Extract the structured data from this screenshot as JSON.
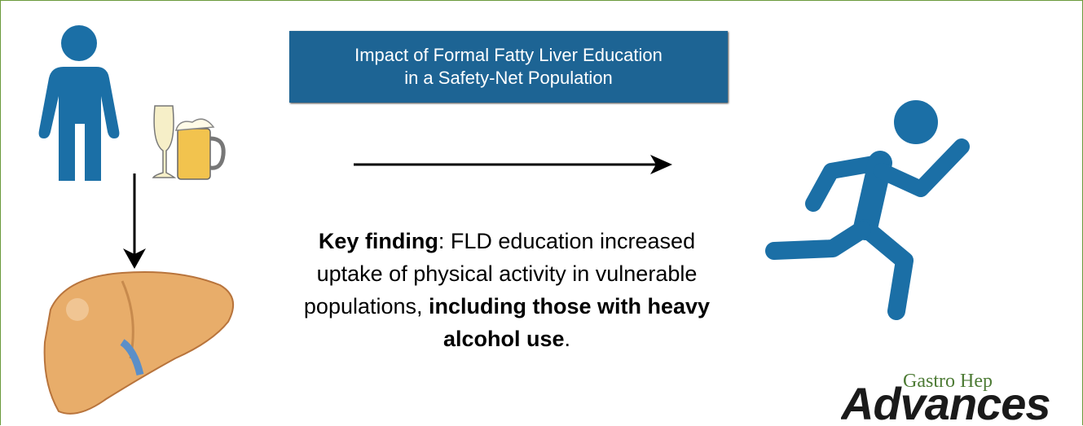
{
  "title": {
    "lines": [
      "Impact of Formal Fatty Liver Education",
      "in a Safety-Net Population"
    ]
  },
  "finding": {
    "segments": [
      {
        "text": "Key finding",
        "bold": true
      },
      {
        "text": ": FLD education increased uptake of physical activity in vulnerable populations, ",
        "bold": false
      },
      {
        "text": "including those with heavy alcohol use",
        "bold": true
      },
      {
        "text": ".",
        "bold": false
      }
    ]
  },
  "logo": {
    "top": "Gastro Hep",
    "bottom": "Advances"
  }
}
